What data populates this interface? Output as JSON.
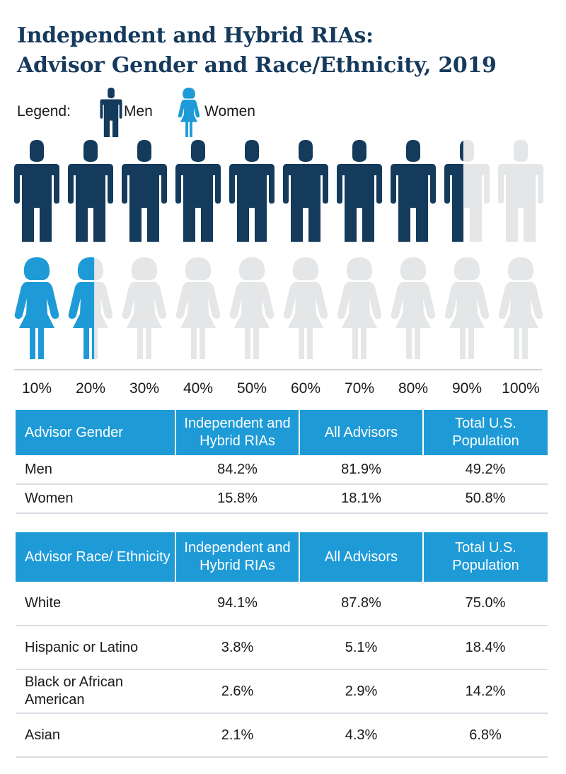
{
  "title": {
    "line1": "Independent and Hybrid RIAs:",
    "line2": "Advisor Gender and Race/Ethnicity, 2019"
  },
  "legend": {
    "label": "Legend:",
    "men": "Men",
    "women": "Women"
  },
  "colors": {
    "men": "#143a5c",
    "women": "#1e9bd7",
    "empty": "#e4e6e7",
    "header_bg": "#1e9bd7"
  },
  "chart_data": {
    "type": "pictogram",
    "icons_per_row": 10,
    "each_icon_represents_percent": 10,
    "series": [
      {
        "name": "Men",
        "value": 84.2
      },
      {
        "name": "Women",
        "value": 15.8
      }
    ],
    "tick_labels": [
      "10%",
      "20%",
      "30%",
      "40%",
      "50%",
      "60%",
      "70%",
      "80%",
      "90%",
      "100%"
    ]
  },
  "gender_table": {
    "headers": [
      "Advisor Gender",
      "Independent and Hybrid RIAs",
      "All Advisors",
      "Total U.S. Population"
    ],
    "rows": [
      [
        "Men",
        "84.2%",
        "81.9%",
        "49.2%"
      ],
      [
        "Women",
        "15.8%",
        "18.1%",
        "50.8%"
      ]
    ]
  },
  "race_table": {
    "headers": [
      "Advisor Race/ Ethnicity",
      "Independent and Hybrid RIAs",
      "All Advisors",
      "Total U.S. Population"
    ],
    "rows": [
      [
        "White",
        "94.1%",
        "87.8%",
        "75.0%"
      ],
      [
        "Hispanic or Latino",
        "3.8%",
        "5.1%",
        "18.4%"
      ],
      [
        "Black or African American",
        "2.6%",
        "2.9%",
        "14.2%"
      ],
      [
        "Asian",
        "2.1%",
        "4.3%",
        "6.8%"
      ]
    ]
  }
}
